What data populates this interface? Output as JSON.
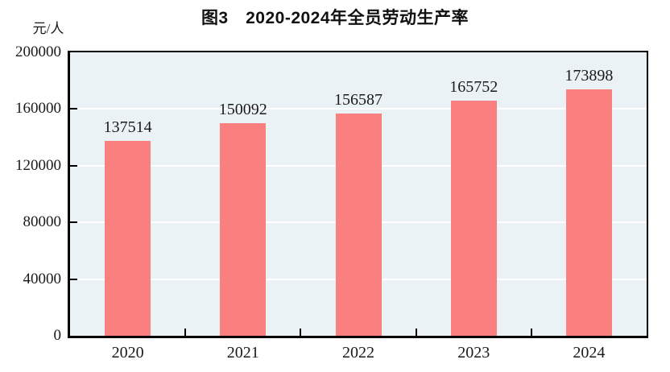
{
  "figure": {
    "title": "图3　2020-2024年全员劳动生产率",
    "unit_label": "元/人"
  },
  "chart_data": {
    "type": "bar",
    "title": "图3　2020-2024年全员劳动生产率",
    "ylabel": "元/人",
    "xlabel": "",
    "categories": [
      "2020",
      "2021",
      "2022",
      "2023",
      "2024"
    ],
    "values": [
      137514,
      150092,
      156587,
      165752,
      173898
    ],
    "value_labels": [
      "137514",
      "150092",
      "156587",
      "165752",
      "173898"
    ],
    "ylim": [
      0,
      200000
    ],
    "yticks": [
      0,
      40000,
      80000,
      120000,
      160000,
      200000
    ],
    "grid": "horizontal-white-lines",
    "legend": "none",
    "tick_direction": "in",
    "colors": {
      "bar": "#FA8080",
      "plot_background": "#EBF2F5",
      "gridline": "#FFFFFF",
      "axis": "#000000",
      "text": "#1A1A1A"
    }
  }
}
